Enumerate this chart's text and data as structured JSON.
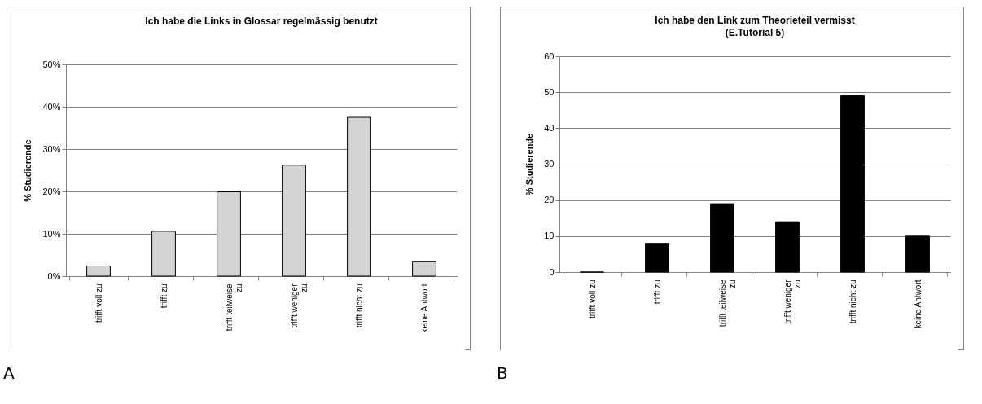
{
  "chart_data": [
    {
      "type": "bar",
      "title": "Ich habe die Links in Glossar regelmässig benutzt",
      "ylabel": "% Studierende",
      "categories": [
        "trifft voll zu",
        "trifft zu",
        "trifft teilweise zu",
        "trifft weniger zu",
        "trifft nicht zu",
        "keine Antwort"
      ],
      "values": [
        2.4,
        10.6,
        19.9,
        26.2,
        37.5,
        3.4
      ],
      "color": "#d4d4d4",
      "ylim": [
        0,
        50
      ],
      "yticks": [
        {
          "value": 0,
          "label": "0%"
        },
        {
          "value": 10,
          "label": "10%"
        },
        {
          "value": 20,
          "label": "20%"
        },
        {
          "value": 30,
          "label": "30%"
        },
        {
          "value": 40,
          "label": "40%"
        },
        {
          "value": 50,
          "label": "50%"
        }
      ],
      "grid": "y",
      "annotations": [
        "A"
      ]
    },
    {
      "type": "bar",
      "title": "Ich habe den Link zum Theorieteil vermisst",
      "subtitle": "(E.Tutorial 5)",
      "ylabel": "% Studierende",
      "categories": [
        "trifft voll zu",
        "trifft zu",
        "trifft teilweise zu",
        "trifft weniger zu",
        "trifft nicht zu",
        "keine Antwort"
      ],
      "values": [
        0,
        8,
        19,
        14,
        49,
        10
      ],
      "color": "#000000",
      "ylim": [
        0,
        60
      ],
      "yticks": [
        0,
        10,
        20,
        30,
        40,
        50,
        60
      ],
      "grid": "y",
      "annotations": [
        "B"
      ]
    }
  ]
}
